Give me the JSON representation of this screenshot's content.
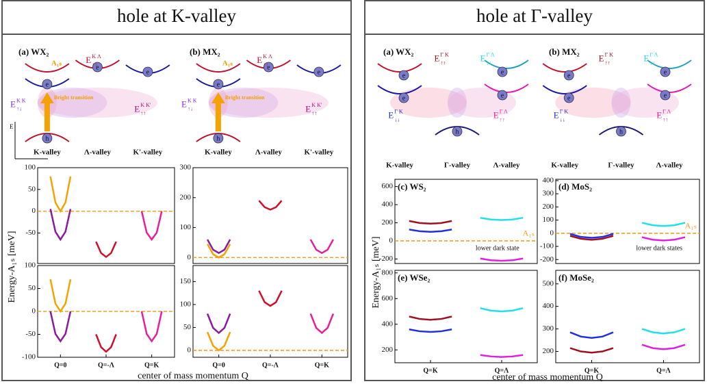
{
  "panels": [
    {
      "title": "hole at K-valley",
      "y_label": "Energy-A₁ₛ [meV]",
      "x_label": "center of mass momentum Q",
      "axis_label": "E",
      "schematics": [
        {
          "label": "(a) WX₂",
          "valleys": [
            "K-valley",
            "Λ-valley",
            "K'-valley"
          ],
          "exciton": "A₁ₛ",
          "transition": "Bright transition",
          "electron": "e",
          "hole": "h",
          "states": [
            {
              "base": "E",
              "sup": "K Λ",
              "sub": "↑↑",
              "color": "#c0102a"
            },
            {
              "base": "E",
              "sup": "K K",
              "sub": "↑↓",
              "color": "#8a2be2"
            },
            {
              "base": "E",
              "sup": "K K'",
              "sub": "↑↑",
              "color": "#b0107a"
            }
          ]
        },
        {
          "label": "(b) MX₂",
          "valleys": [
            "K-valley",
            "Λ-valley",
            "K'-valley"
          ],
          "exciton": "A₁ₛ",
          "transition": "Bright transition",
          "electron": "e",
          "hole": "h",
          "states": [
            {
              "base": "E",
              "sup": "K Λ",
              "sub": "↑↑",
              "color": "#c0102a"
            },
            {
              "base": "E",
              "sup": "K K",
              "sub": "↑↓",
              "color": "#8a2be2"
            },
            {
              "base": "E",
              "sup": "K K'",
              "sub": "↑↑",
              "color": "#b0107a"
            }
          ]
        }
      ]
    },
    {
      "title": "hole at Γ-valley",
      "y_label": "Energy-A₁ₛ [meV]",
      "x_label": "center of mass momentum Q",
      "schematics": [
        {
          "label": "(a) WX₂",
          "valleys": [
            "K-valley",
            "Γ-valley",
            "Λ-valley"
          ],
          "electron": "e",
          "hole": "h",
          "states": [
            {
              "base": "E",
              "sup": "Γ K",
              "sub": "↑↑",
              "color": "#a01020"
            },
            {
              "base": "E",
              "sup": "Γ Λ",
              "sub": "↓↓",
              "color": "#20d8e0"
            },
            {
              "base": "E",
              "sup": "Γ K",
              "sub": "↓↓",
              "color": "#2030c0"
            },
            {
              "base": "E",
              "sup": "Γ Λ",
              "sub": "↑↑",
              "color": "#e6209a"
            }
          ]
        },
        {
          "label": "(b) MX₂",
          "valleys": [
            "K-valley",
            "Γ-valley",
            "Λ-valley"
          ],
          "electron": "e",
          "hole": "h",
          "states": [
            {
              "base": "E",
              "sup": "Γ K",
              "sub": "↑↑",
              "color": "#a01020"
            },
            {
              "base": "E",
              "sup": "Γ Λ",
              "sub": "↓↓",
              "color": "#20d8e0"
            },
            {
              "base": "E",
              "sup": "Γ K",
              "sub": "↓↓",
              "color": "#2030c0"
            },
            {
              "base": "E",
              "sup": "Γ Λ",
              "sub": "↑↑",
              "color": "#e6209a"
            }
          ]
        }
      ]
    }
  ],
  "chart_data": [
    {
      "type": "line",
      "xlim": [
        0,
        3
      ],
      "ylim": [
        -120,
        100
      ],
      "yticks": [
        -50,
        0,
        50,
        100
      ],
      "reference": {
        "value": 0,
        "color": "#f0a020"
      },
      "series": [
        {
          "color": "#f5a300",
          "x": [
            0.28,
            0.39,
            0.5,
            0.61,
            0.72
          ],
          "values": [
            80,
            20,
            0,
            20,
            80
          ]
        },
        {
          "color": "#8b1a9e",
          "x": [
            0.28,
            0.39,
            0.5,
            0.61,
            0.72
          ],
          "values": [
            5,
            -47,
            -65,
            -47,
            5
          ]
        },
        {
          "color": "#d0102a",
          "x": [
            1.28,
            1.39,
            1.5,
            1.61,
            1.72
          ],
          "values": [
            -70,
            -96,
            -105,
            -96,
            -70
          ]
        },
        {
          "color": "#e6209a",
          "x": [
            2.28,
            2.39,
            2.5,
            2.61,
            2.72
          ],
          "values": [
            0,
            -49,
            -65,
            -49,
            0
          ]
        }
      ]
    },
    {
      "type": "line",
      "xlim": [
        0,
        3
      ],
      "ylim": [
        -20,
        300
      ],
      "yticks": [
        0,
        100,
        200,
        300
      ],
      "reference": {
        "value": 0,
        "color": "#f0a020"
      },
      "series": [
        {
          "color": "#d0102a",
          "x": [
            1.28,
            1.39,
            1.5,
            1.61,
            1.72
          ],
          "values": [
            190,
            168,
            160,
            168,
            190
          ]
        },
        {
          "color": "#8b1a9e",
          "x": [
            0.28,
            0.39,
            0.5,
            0.61,
            0.72
          ],
          "values": [
            60,
            26,
            15,
            26,
            60
          ]
        },
        {
          "color": "#f5a300",
          "x": [
            0.28,
            0.39,
            0.5,
            0.61,
            0.72
          ],
          "values": [
            45,
            11,
            0,
            11,
            45
          ]
        },
        {
          "color": "#e6209a",
          "x": [
            2.28,
            2.39,
            2.5,
            2.61,
            2.72
          ],
          "values": [
            60,
            26,
            15,
            26,
            60
          ]
        }
      ]
    },
    {
      "type": "line",
      "xlim": [
        0,
        3
      ],
      "ylim": [
        -100,
        100
      ],
      "yticks": [
        -100,
        -50,
        0,
        50,
        100
      ],
      "reference": {
        "value": 0,
        "color": "#f0a020"
      },
      "xticks": [
        {
          "value": 0.5,
          "label": "Q=0"
        },
        {
          "value": 1.5,
          "label": "Q=-Λ"
        },
        {
          "value": 2.5,
          "label": "Q=K"
        }
      ],
      "series": [
        {
          "color": "#f5a300",
          "x": [
            0.28,
            0.39,
            0.5,
            0.61,
            0.72
          ],
          "values": [
            70,
            17,
            0,
            17,
            70
          ]
        },
        {
          "color": "#8b1a9e",
          "x": [
            0.28,
            0.39,
            0.5,
            0.61,
            0.72
          ],
          "values": [
            0,
            -49,
            -65,
            -49,
            0
          ]
        },
        {
          "color": "#d0102a",
          "x": [
            1.28,
            1.39,
            1.5,
            1.61,
            1.72
          ],
          "values": [
            -50,
            -78,
            -88,
            -78,
            -50
          ]
        },
        {
          "color": "#e6209a",
          "x": [
            2.28,
            2.39,
            2.5,
            2.61,
            2.72
          ],
          "values": [
            0,
            -49,
            -65,
            -49,
            0
          ]
        }
      ]
    },
    {
      "type": "line",
      "xlim": [
        0,
        3
      ],
      "ylim": [
        -15,
        185
      ],
      "yticks": [
        0,
        50,
        100,
        150
      ],
      "reference": {
        "value": 0,
        "color": "#f0a020"
      },
      "xticks": [
        {
          "value": 0.5,
          "label": "Q=0"
        },
        {
          "value": 1.5,
          "label": "Q=-Λ"
        },
        {
          "value": 2.5,
          "label": "Q=K"
        }
      ],
      "series": [
        {
          "color": "#d0102a",
          "x": [
            1.28,
            1.39,
            1.5,
            1.61,
            1.72
          ],
          "values": [
            130,
            105,
            97,
            105,
            130
          ]
        },
        {
          "color": "#8b1a9e",
          "x": [
            0.28,
            0.39,
            0.5,
            0.61,
            0.72
          ],
          "values": [
            80,
            49,
            38,
            49,
            80
          ]
        },
        {
          "color": "#f5a300",
          "x": [
            0.28,
            0.39,
            0.5,
            0.61,
            0.72
          ],
          "values": [
            40,
            10,
            0,
            10,
            40
          ]
        },
        {
          "color": "#e6209a",
          "x": [
            2.28,
            2.39,
            2.5,
            2.61,
            2.72
          ],
          "values": [
            80,
            49,
            38,
            49,
            80
          ]
        }
      ]
    },
    {
      "type": "line",
      "title": "(c) WS₂",
      "xlim": [
        0,
        2
      ],
      "ylim": [
        -250,
        680
      ],
      "yticks": [
        -200,
        0,
        200,
        400,
        600
      ],
      "reference": {
        "value": 0,
        "color": "#f0a020",
        "label": "A₁ₛ"
      },
      "note": "lower dark state",
      "series": [
        {
          "color": "#a01020",
          "x": [
            0.2,
            0.35,
            0.5,
            0.65,
            0.8
          ],
          "values": [
            220,
            197,
            190,
            197,
            220
          ]
        },
        {
          "color": "#2030e0",
          "x": [
            0.2,
            0.35,
            0.5,
            0.65,
            0.8
          ],
          "values": [
            125,
            106,
            100,
            106,
            125
          ]
        },
        {
          "color": "#20e0e8",
          "x": [
            1.2,
            1.35,
            1.5,
            1.65,
            1.8
          ],
          "values": [
            255,
            236,
            230,
            236,
            255
          ]
        },
        {
          "color": "#e020e0",
          "x": [
            1.2,
            1.35,
            1.5,
            1.65,
            1.8
          ],
          "values": [
            -195,
            -214,
            -220,
            -214,
            -195
          ]
        }
      ]
    },
    {
      "type": "line",
      "title": "(d) MoS₂",
      "xlim": [
        0,
        2
      ],
      "ylim": [
        -230,
        410
      ],
      "yticks": [
        -200,
        -100,
        0,
        100,
        200,
        300,
        400
      ],
      "reference": {
        "value": 0,
        "color": "#f0a020",
        "label": "A₁ₛ"
      },
      "note": "lower dark states",
      "series": [
        {
          "color": "#a01020",
          "x": [
            0.2,
            0.35,
            0.5,
            0.65,
            0.8
          ],
          "values": [
            -20,
            -42,
            -50,
            -42,
            -20
          ]
        },
        {
          "color": "#2030e0",
          "x": [
            0.2,
            0.35,
            0.5,
            0.65,
            0.8
          ],
          "values": [
            -5,
            -28,
            -35,
            -28,
            -5
          ]
        },
        {
          "color": "#20e0e8",
          "x": [
            1.2,
            1.35,
            1.5,
            1.65,
            1.8
          ],
          "values": [
            80,
            61,
            55,
            61,
            80
          ]
        },
        {
          "color": "#e020e0",
          "x": [
            1.2,
            1.35,
            1.5,
            1.65,
            1.8
          ],
          "values": [
            -30,
            -49,
            -55,
            -49,
            -30
          ]
        }
      ]
    },
    {
      "type": "line",
      "title": "(e) WSe₂",
      "xlim": [
        0,
        2
      ],
      "ylim": [
        100,
        820
      ],
      "yticks": [
        200,
        400,
        600,
        800
      ],
      "xticks": [
        {
          "value": 0.5,
          "label": "Q=K"
        },
        {
          "value": 1.5,
          "label": "Q=Λ"
        }
      ],
      "series": [
        {
          "color": "#a01020",
          "x": [
            0.2,
            0.35,
            0.5,
            0.65,
            0.8
          ],
          "values": [
            460,
            441,
            435,
            441,
            460
          ]
        },
        {
          "color": "#2030e0",
          "x": [
            0.2,
            0.35,
            0.5,
            0.65,
            0.8
          ],
          "values": [
            360,
            345,
            340,
            345,
            360
          ]
        },
        {
          "color": "#20e0e8",
          "x": [
            1.2,
            1.35,
            1.5,
            1.65,
            1.8
          ],
          "values": [
            525,
            506,
            500,
            506,
            525
          ]
        },
        {
          "color": "#e020e0",
          "x": [
            1.2,
            1.35,
            1.5,
            1.65,
            1.8
          ],
          "values": [
            160,
            149,
            145,
            149,
            160
          ]
        }
      ]
    },
    {
      "type": "line",
      "title": "(f) MoSe₂",
      "xlim": [
        0,
        2
      ],
      "ylim": [
        150,
        560
      ],
      "yticks": [
        200,
        300,
        400,
        500
      ],
      "xticks": [
        {
          "value": 0.5,
          "label": "Q=K"
        },
        {
          "value": 1.5,
          "label": "Q=Λ"
        }
      ],
      "series": [
        {
          "color": "#a01020",
          "x": [
            0.2,
            0.35,
            0.5,
            0.65,
            0.8
          ],
          "values": [
            215,
            200,
            195,
            200,
            215
          ]
        },
        {
          "color": "#2030e0",
          "x": [
            0.2,
            0.35,
            0.5,
            0.65,
            0.8
          ],
          "values": [
            285,
            266,
            260,
            266,
            285
          ]
        },
        {
          "color": "#20e0e8",
          "x": [
            1.2,
            1.35,
            1.5,
            1.65,
            1.8
          ],
          "values": [
            300,
            285,
            280,
            285,
            300
          ]
        },
        {
          "color": "#e020e0",
          "x": [
            1.2,
            1.35,
            1.5,
            1.65,
            1.8
          ],
          "values": [
            230,
            215,
            210,
            215,
            230
          ]
        }
      ]
    }
  ]
}
